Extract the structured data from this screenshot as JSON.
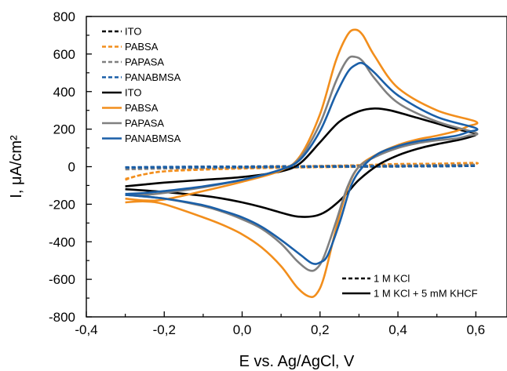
{
  "chart_data": {
    "type": "line",
    "xlabel": "E vs. Ag/AgCl, V",
    "ylabel": "I, μA/cm²",
    "xlim": [
      -0.4,
      0.68
    ],
    "ylim": [
      -800,
      800
    ],
    "x_ticks": [
      -0.4,
      -0.2,
      0.0,
      0.2,
      0.4,
      0.6
    ],
    "x_tick_labels": [
      "-0,4",
      "-0,2",
      "0,0",
      "0,2",
      "0,4",
      "0,6"
    ],
    "y_ticks": [
      -800,
      -600,
      -400,
      -200,
      0,
      200,
      400,
      600,
      800
    ],
    "y_tick_labels": [
      "-800",
      "-600",
      "-400",
      "-200",
      "0",
      "200",
      "400",
      "600",
      "800"
    ],
    "grid": false,
    "legend": {
      "placement": "top-left",
      "entries": [
        {
          "label": "ITO",
          "color": "#000000",
          "dash": "dashed"
        },
        {
          "label": "PABSA",
          "color": "#f28e1c",
          "dash": "dashed"
        },
        {
          "label": "PAPASA",
          "color": "#808080",
          "dash": "dashed"
        },
        {
          "label": "PANABMSA",
          "color": "#1a5fa8",
          "dash": "dashed"
        },
        {
          "label": "ITO",
          "color": "#000000",
          "dash": "solid"
        },
        {
          "label": "PABSA",
          "color": "#f28e1c",
          "dash": "solid"
        },
        {
          "label": "PAPASA",
          "color": "#808080",
          "dash": "solid"
        },
        {
          "label": "PANABMSA",
          "color": "#1a5fa8",
          "dash": "solid"
        }
      ]
    },
    "legend2": {
      "placement": "bottom-right",
      "entries": [
        {
          "label": "1 M KCl",
          "color": "#000000",
          "dash": "dashed"
        },
        {
          "label": "1 M KCl + 5 mM KHCF",
          "color": "#000000",
          "dash": "solid"
        }
      ]
    },
    "series": [
      {
        "name": "ITO",
        "electrolyte": "1 M KCl",
        "color": "#000000",
        "dash": "dashed",
        "x": [
          -0.3,
          -0.2,
          -0.1,
          0.0,
          0.1,
          0.2,
          0.3,
          0.4,
          0.5,
          0.6,
          0.5,
          0.4,
          0.3,
          0.2,
          0.1,
          0.0,
          -0.1,
          -0.2,
          -0.3
        ],
        "y": [
          -4,
          -2,
          0,
          1,
          2,
          3,
          4,
          5,
          5,
          4,
          2,
          1,
          0,
          -1,
          -2,
          -3,
          -4,
          -5,
          -6
        ]
      },
      {
        "name": "PABSA",
        "electrolyte": "1 M KCl",
        "color": "#f28e1c",
        "dash": "dashed",
        "x": [
          -0.3,
          -0.28,
          -0.25,
          -0.2,
          -0.1,
          0.0,
          0.1,
          0.2,
          0.3,
          0.4,
          0.5,
          0.6,
          0.58,
          0.5,
          0.4,
          0.3,
          0.2,
          0.1,
          0.0,
          -0.1,
          -0.2,
          -0.25,
          -0.3
        ],
        "y": [
          -70,
          -55,
          -40,
          -25,
          -12,
          -5,
          0,
          4,
          8,
          14,
          16,
          20,
          10,
          5,
          2,
          -1,
          -3,
          -6,
          -10,
          -16,
          -25,
          -40,
          -65
        ]
      },
      {
        "name": "PAPASA",
        "electrolyte": "1 M KCl",
        "color": "#808080",
        "dash": "dashed",
        "x": [
          -0.3,
          -0.2,
          -0.1,
          0.0,
          0.1,
          0.2,
          0.3,
          0.4,
          0.5,
          0.6,
          0.5,
          0.4,
          0.3,
          0.2,
          0.1,
          0.0,
          -0.1,
          -0.2,
          -0.3
        ],
        "y": [
          -12,
          -6,
          -3,
          -1,
          1,
          3,
          5,
          7,
          9,
          10,
          6,
          3,
          1,
          -1,
          -3,
          -5,
          -7,
          -10,
          -14
        ]
      },
      {
        "name": "PANABMSA",
        "electrolyte": "1 M KCl",
        "color": "#1a5fa8",
        "dash": "dashed",
        "x": [
          -0.3,
          -0.2,
          -0.1,
          0.0,
          0.1,
          0.2,
          0.3,
          0.4,
          0.5,
          0.6,
          0.5,
          0.4,
          0.3,
          0.2,
          0.1,
          0.0,
          -0.1,
          -0.2,
          -0.3
        ],
        "y": [
          -3,
          -1,
          0,
          1,
          2,
          2,
          3,
          3,
          4,
          4,
          2,
          1,
          0,
          -1,
          -2,
          -3,
          -3,
          -4,
          -5
        ]
      },
      {
        "name": "ITO",
        "electrolyte": "1 M KCl + 5 mM KHCF",
        "color": "#000000",
        "dash": "solid",
        "x": [
          -0.3,
          -0.25,
          -0.2,
          -0.1,
          0.0,
          0.1,
          0.15,
          0.2,
          0.25,
          0.3,
          0.34,
          0.38,
          0.45,
          0.5,
          0.55,
          0.6,
          0.58,
          0.55,
          0.5,
          0.45,
          0.4,
          0.35,
          0.3,
          0.27,
          0.24,
          0.21,
          0.18,
          0.14,
          0.1,
          0.05,
          0.0,
          -0.05,
          -0.1,
          -0.2,
          -0.3
        ],
        "y": [
          -105,
          -95,
          -85,
          -70,
          -55,
          -25,
          20,
          130,
          240,
          295,
          310,
          300,
          260,
          230,
          200,
          175,
          155,
          140,
          120,
          95,
          60,
          10,
          -70,
          -140,
          -200,
          -245,
          -265,
          -265,
          -245,
          -215,
          -190,
          -170,
          -155,
          -135,
          -120
        ]
      },
      {
        "name": "PABSA",
        "electrolyte": "1 M KCl + 5 mM KHCF",
        "color": "#f28e1c",
        "dash": "solid",
        "x": [
          -0.3,
          -0.25,
          -0.2,
          -0.1,
          0.0,
          0.1,
          0.15,
          0.2,
          0.24,
          0.27,
          0.29,
          0.31,
          0.34,
          0.4,
          0.5,
          0.6,
          0.58,
          0.55,
          0.5,
          0.45,
          0.4,
          0.35,
          0.3,
          0.27,
          0.24,
          0.21,
          0.19,
          0.17,
          0.14,
          0.1,
          0.05,
          0.0,
          -0.05,
          -0.1,
          -0.2,
          -0.25,
          -0.3
        ],
        "y": [
          -170,
          -180,
          -175,
          -130,
          -80,
          -20,
          60,
          280,
          560,
          700,
          730,
          700,
          590,
          420,
          300,
          240,
          215,
          190,
          165,
          145,
          115,
          70,
          0,
          -120,
          -340,
          -590,
          -680,
          -690,
          -640,
          -530,
          -430,
          -360,
          -310,
          -270,
          -200,
          -185,
          -190
        ]
      },
      {
        "name": "PAPASA",
        "electrolyte": "1 M KCl + 5 mM KHCF",
        "color": "#808080",
        "dash": "solid",
        "x": [
          -0.3,
          -0.25,
          -0.2,
          -0.1,
          0.0,
          0.1,
          0.15,
          0.2,
          0.24,
          0.27,
          0.29,
          0.31,
          0.34,
          0.4,
          0.5,
          0.6,
          0.58,
          0.55,
          0.5,
          0.45,
          0.4,
          0.35,
          0.3,
          0.27,
          0.24,
          0.21,
          0.19,
          0.17,
          0.14,
          0.1,
          0.05,
          0.0,
          -0.05,
          -0.1,
          -0.2,
          -0.3
        ],
        "y": [
          -150,
          -150,
          -140,
          -110,
          -70,
          -15,
          50,
          230,
          450,
          570,
          585,
          560,
          470,
          340,
          240,
          180,
          165,
          150,
          140,
          125,
          100,
          60,
          0,
          -110,
          -300,
          -480,
          -545,
          -550,
          -500,
          -410,
          -330,
          -280,
          -240,
          -210,
          -170,
          -150
        ]
      },
      {
        "name": "PANABMSA",
        "electrolyte": "1 M KCl + 5 mM KHCF",
        "color": "#1a5fa8",
        "dash": "solid",
        "x": [
          -0.3,
          -0.25,
          -0.2,
          -0.1,
          0.0,
          0.1,
          0.15,
          0.2,
          0.24,
          0.27,
          0.29,
          0.31,
          0.34,
          0.4,
          0.5,
          0.6,
          0.58,
          0.55,
          0.5,
          0.45,
          0.4,
          0.35,
          0.31,
          0.28,
          0.25,
          0.22,
          0.2,
          0.18,
          0.15,
          0.1,
          0.05,
          0.0,
          -0.05,
          -0.1,
          -0.2,
          -0.3
        ],
        "y": [
          -145,
          -140,
          -130,
          -105,
          -70,
          -15,
          40,
          190,
          380,
          500,
          540,
          550,
          500,
          380,
          265,
          205,
          185,
          165,
          150,
          135,
          110,
          70,
          0,
          -100,
          -300,
          -470,
          -510,
          -515,
          -470,
          -390,
          -320,
          -270,
          -235,
          -205,
          -170,
          -150
        ]
      }
    ]
  }
}
